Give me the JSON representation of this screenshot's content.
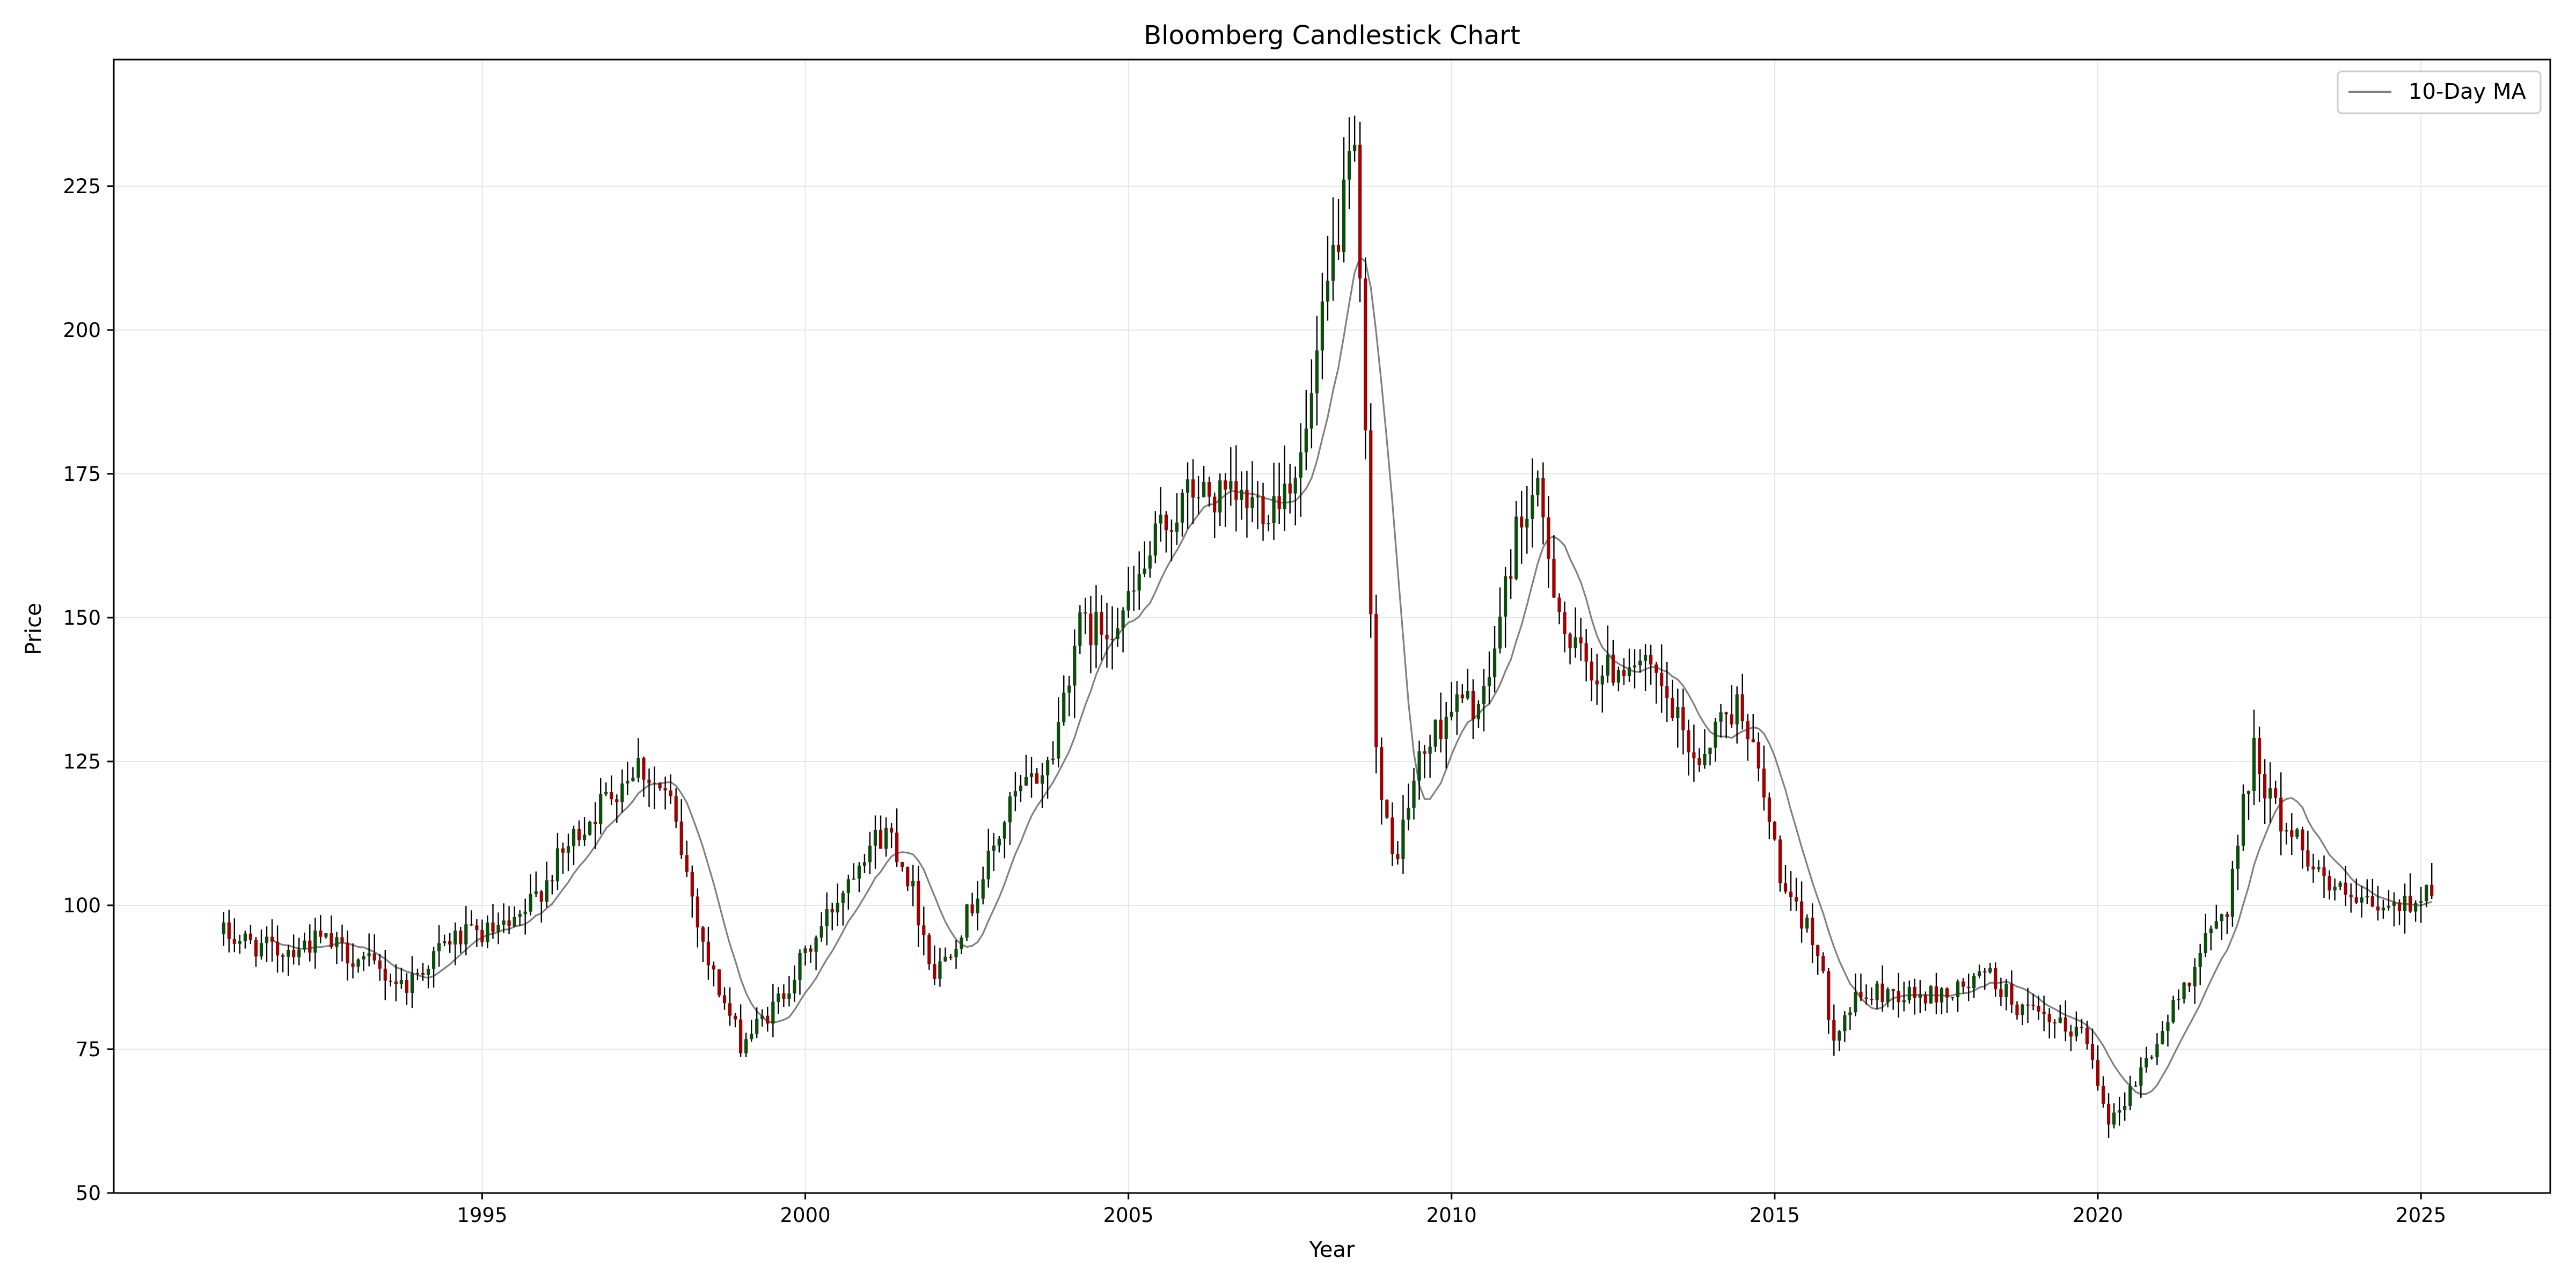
{
  "chart_data": {
    "type": "candlestick",
    "title": "Bloomberg Candlestick Chart",
    "xlabel": "Year",
    "ylabel": "Price",
    "xlim": [
      1989.3,
      2027.0
    ],
    "ylim": [
      50,
      247
    ],
    "xticks": [
      1995,
      2000,
      2005,
      2010,
      2015,
      2020,
      2025
    ],
    "xtick_labels": [
      "1995",
      "2000",
      "2005",
      "2010",
      "2015",
      "2020",
      "2025"
    ],
    "yticks": [
      50,
      75,
      100,
      125,
      150,
      175,
      200,
      225
    ],
    "ytick_labels": [
      "50",
      "75",
      "100",
      "125",
      "150",
      "175",
      "200",
      "225"
    ],
    "grid": true,
    "legend": {
      "position": "top-right",
      "entries": [
        "10-Day MA"
      ]
    },
    "colors": {
      "up": "#0b4d0b",
      "down": "#a00000",
      "wick": "#000000",
      "ma": "#808080",
      "grid": "#e6e6e6"
    },
    "ma_window": 10,
    "price_path": [
      [
        1991.0,
        95
      ],
      [
        1991.8,
        92
      ],
      [
        1992.5,
        94
      ],
      [
        1993.2,
        90
      ],
      [
        1993.8,
        86
      ],
      [
        1994.5,
        94
      ],
      [
        1995.5,
        96
      ],
      [
        1996.5,
        113
      ],
      [
        1997.4,
        125
      ],
      [
        1997.9,
        118
      ],
      [
        1998.5,
        90
      ],
      [
        1999.0,
        76
      ],
      [
        1999.5,
        82
      ],
      [
        2000.2,
        95
      ],
      [
        2000.9,
        110
      ],
      [
        2001.3,
        113
      ],
      [
        2001.6,
        105
      ],
      [
        2002.0,
        88
      ],
      [
        2002.5,
        98
      ],
      [
        2003.2,
        118
      ],
      [
        2003.8,
        125
      ],
      [
        2004.2,
        148
      ],
      [
        2004.6,
        148
      ],
      [
        2005.0,
        152
      ],
      [
        2005.5,
        165
      ],
      [
        2006.0,
        172
      ],
      [
        2006.5,
        170
      ],
      [
        2007.2,
        170
      ],
      [
        2007.7,
        178
      ],
      [
        2008.2,
        215
      ],
      [
        2008.5,
        230
      ],
      [
        2008.7,
        170
      ],
      [
        2008.85,
        122
      ],
      [
        2009.1,
        107
      ],
      [
        2009.5,
        125
      ],
      [
        2010.0,
        135
      ],
      [
        2010.5,
        135
      ],
      [
        2011.0,
        165
      ],
      [
        2011.3,
        172
      ],
      [
        2011.8,
        145
      ],
      [
        2012.3,
        140
      ],
      [
        2012.8,
        143
      ],
      [
        2013.2,
        138
      ],
      [
        2013.8,
        125
      ],
      [
        2014.2,
        133
      ],
      [
        2014.5,
        135
      ],
      [
        2014.9,
        115
      ],
      [
        2015.2,
        100
      ],
      [
        2015.6,
        95
      ],
      [
        2015.9,
        78
      ],
      [
        2016.3,
        84
      ],
      [
        2016.8,
        85
      ],
      [
        2017.3,
        84
      ],
      [
        2017.8,
        85
      ],
      [
        2018.3,
        88
      ],
      [
        2018.8,
        82
      ],
      [
        2019.3,
        79
      ],
      [
        2019.8,
        78
      ],
      [
        2020.2,
        62
      ],
      [
        2020.6,
        70
      ],
      [
        2021.0,
        78
      ],
      [
        2021.5,
        90
      ],
      [
        2022.0,
        100
      ],
      [
        2022.4,
        127
      ],
      [
        2022.8,
        115
      ],
      [
        2023.2,
        110
      ],
      [
        2023.6,
        103
      ],
      [
        2024.0,
        100
      ],
      [
        2024.5,
        99
      ],
      [
        2024.9,
        101
      ],
      [
        2025.2,
        104
      ]
    ]
  }
}
